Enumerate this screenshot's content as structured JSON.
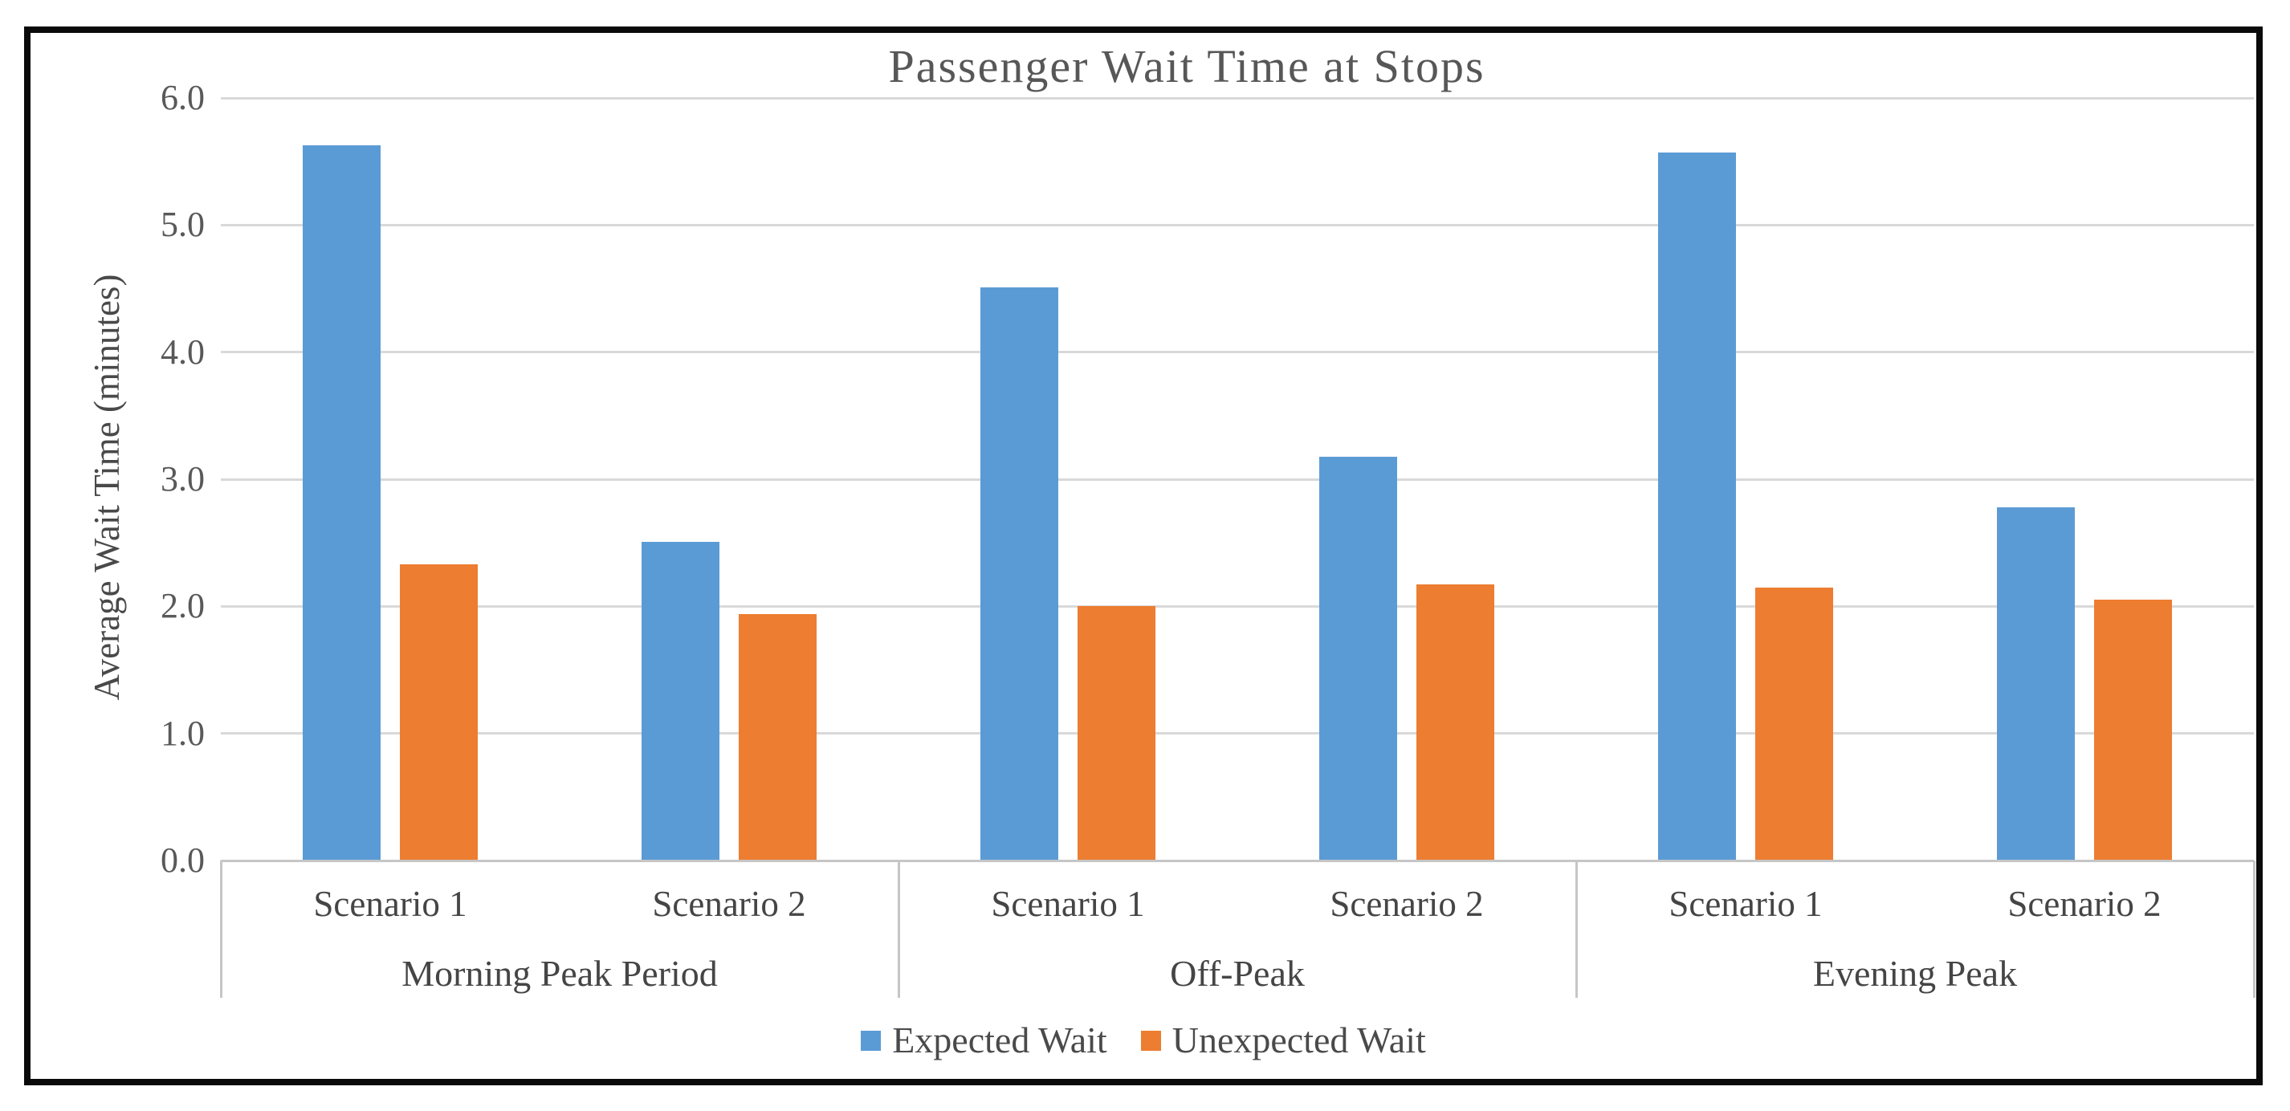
{
  "chart_data": {
    "type": "bar",
    "title": "Passenger Wait Time at Stops",
    "ylabel": "Average Wait Time (minutes)",
    "xlabel": "",
    "ylim": [
      0.0,
      6.0
    ],
    "ytick_step": 1.0,
    "ytick_labels": [
      "0.0",
      "1.0",
      "2.0",
      "3.0",
      "4.0",
      "5.0",
      "6.0"
    ],
    "grid": true,
    "legend_position": "bottom",
    "groups": [
      {
        "label": "Morning Peak Period",
        "categories": [
          "Scenario 1",
          "Scenario 2"
        ]
      },
      {
        "label": "Off-Peak",
        "categories": [
          "Scenario 1",
          "Scenario 2"
        ]
      },
      {
        "label": "Evening Peak",
        "categories": [
          "Scenario 1",
          "Scenario 2"
        ]
      }
    ],
    "series": [
      {
        "name": "Expected Wait",
        "color": "#5B9BD5",
        "values": [
          5.63,
          2.51,
          4.51,
          3.18,
          5.57,
          2.78
        ]
      },
      {
        "name": "Unexpected Wait",
        "color": "#ED7D31",
        "values": [
          2.33,
          1.94,
          2.0,
          2.17,
          2.15,
          2.05
        ]
      }
    ]
  },
  "colors": {
    "gridline": "#D9D9D9",
    "axis_line": "#C6C6C6",
    "frame_border": "#0A0A0A",
    "title_text": "#575757",
    "tick_text": "#595959",
    "category_text": "#454545",
    "background": "#FFFFFF"
  }
}
